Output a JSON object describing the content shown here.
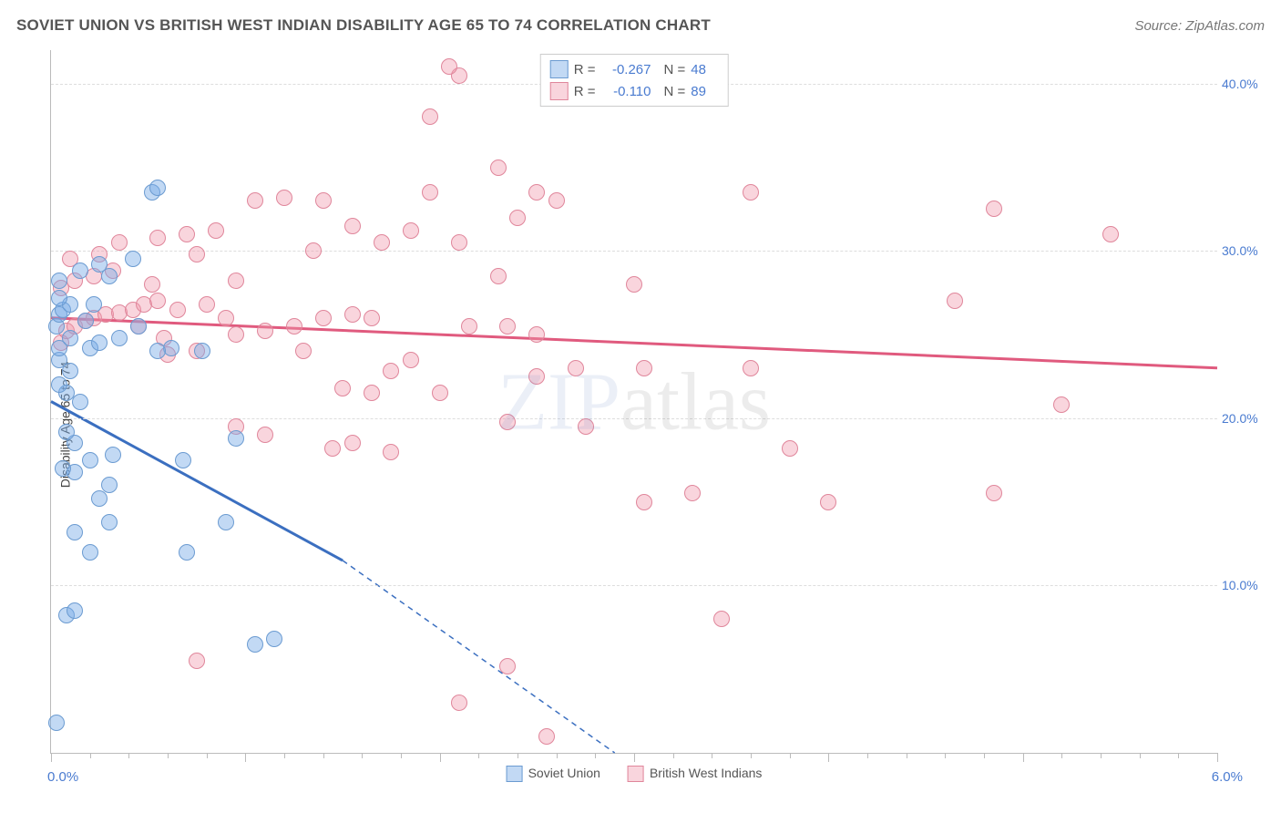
{
  "title": "SOVIET UNION VS BRITISH WEST INDIAN DISABILITY AGE 65 TO 74 CORRELATION CHART",
  "source": "Source: ZipAtlas.com",
  "ylabel": "Disability Age 65 to 74",
  "watermark_part1": "ZIP",
  "watermark_part2": "atlas",
  "chart": {
    "type": "scatter",
    "background_color": "#ffffff",
    "grid_color": "#dddddd",
    "axis_color": "#bbbbbb",
    "label_color": "#4a7bd0",
    "title_fontsize": 17,
    "label_fontsize": 14,
    "tick_fontsize": 14,
    "xlim": [
      0.0,
      6.0
    ],
    "ylim": [
      0.0,
      42.0
    ],
    "xlim_labels": [
      "0.0%",
      "6.0%"
    ],
    "yticks": [
      10.0,
      20.0,
      30.0,
      40.0
    ],
    "ytick_labels": [
      "10.0%",
      "20.0%",
      "30.0%",
      "40.0%"
    ],
    "xtick_minor_step": 0.2,
    "xtick_major_step": 1.0,
    "point_radius": 9,
    "series": [
      {
        "name": "Soviet Union",
        "fill": "rgba(120, 170, 230, 0.45)",
        "stroke": "#6b9bd1",
        "line_color": "#3b6fc0",
        "line_width": 3,
        "R": "-0.267",
        "N": "48",
        "trend": {
          "x1": 0.0,
          "y1": 21.0,
          "x2": 1.5,
          "y2": 11.5,
          "x2_ext": 2.9,
          "y2_ext": 0.0
        },
        "points": [
          [
            0.03,
            1.8
          ],
          [
            0.08,
            8.2
          ],
          [
            0.12,
            8.5
          ],
          [
            0.2,
            12.0
          ],
          [
            0.7,
            12.0
          ],
          [
            0.3,
            13.8
          ],
          [
            0.9,
            13.8
          ],
          [
            1.05,
            6.5
          ],
          [
            1.15,
            6.8
          ],
          [
            0.25,
            15.2
          ],
          [
            0.3,
            16.0
          ],
          [
            0.12,
            16.8
          ],
          [
            0.2,
            17.5
          ],
          [
            0.32,
            17.8
          ],
          [
            0.68,
            17.5
          ],
          [
            0.08,
            21.5
          ],
          [
            0.04,
            22.0
          ],
          [
            0.1,
            22.8
          ],
          [
            0.04,
            23.5
          ],
          [
            0.04,
            24.2
          ],
          [
            0.1,
            24.8
          ],
          [
            0.03,
            25.5
          ],
          [
            0.04,
            26.2
          ],
          [
            0.06,
            26.5
          ],
          [
            0.1,
            26.8
          ],
          [
            0.04,
            27.2
          ],
          [
            0.2,
            24.2
          ],
          [
            0.25,
            24.5
          ],
          [
            0.35,
            24.8
          ],
          [
            0.45,
            25.5
          ],
          [
            0.15,
            28.8
          ],
          [
            0.04,
            28.2
          ],
          [
            0.52,
            33.5
          ],
          [
            0.55,
            33.8
          ],
          [
            0.42,
            29.5
          ],
          [
            0.25,
            29.2
          ],
          [
            0.3,
            28.5
          ],
          [
            0.12,
            18.5
          ],
          [
            0.08,
            19.2
          ],
          [
            0.95,
            18.8
          ],
          [
            0.78,
            24.0
          ],
          [
            0.62,
            24.2
          ],
          [
            0.55,
            24.0
          ],
          [
            0.18,
            25.8
          ],
          [
            0.22,
            26.8
          ],
          [
            0.06,
            17.0
          ],
          [
            0.12,
            13.2
          ],
          [
            0.15,
            21.0
          ]
        ]
      },
      {
        "name": "British West Indians",
        "fill": "rgba(240, 150, 170, 0.40)",
        "stroke": "#e0869b",
        "line_color": "#e05a7e",
        "line_width": 3,
        "R": "-0.110",
        "N": "89",
        "trend": {
          "x1": 0.0,
          "y1": 26.0,
          "x2": 6.0,
          "y2": 23.0
        },
        "points": [
          [
            0.05,
            24.5
          ],
          [
            0.08,
            25.2
          ],
          [
            0.12,
            25.5
          ],
          [
            0.18,
            25.8
          ],
          [
            0.22,
            26.0
          ],
          [
            0.28,
            26.2
          ],
          [
            0.35,
            26.3
          ],
          [
            0.42,
            26.5
          ],
          [
            0.48,
            26.8
          ],
          [
            0.55,
            27.0
          ],
          [
            0.05,
            27.8
          ],
          [
            0.12,
            28.2
          ],
          [
            0.22,
            28.5
          ],
          [
            0.32,
            28.8
          ],
          [
            0.1,
            29.5
          ],
          [
            0.25,
            29.8
          ],
          [
            0.75,
            29.8
          ],
          [
            0.52,
            28.0
          ],
          [
            0.95,
            28.2
          ],
          [
            0.35,
            30.5
          ],
          [
            0.55,
            30.8
          ],
          [
            0.7,
            31.0
          ],
          [
            0.85,
            31.2
          ],
          [
            0.45,
            25.5
          ],
          [
            0.6,
            23.8
          ],
          [
            0.58,
            24.8
          ],
          [
            0.65,
            26.5
          ],
          [
            0.75,
            24.0
          ],
          [
            0.8,
            26.8
          ],
          [
            0.9,
            26.0
          ],
          [
            0.95,
            25.0
          ],
          [
            1.1,
            25.2
          ],
          [
            1.25,
            25.5
          ],
          [
            1.3,
            24.0
          ],
          [
            1.4,
            26.0
          ],
          [
            1.55,
            26.2
          ],
          [
            1.65,
            26.0
          ],
          [
            1.5,
            21.8
          ],
          [
            1.65,
            21.5
          ],
          [
            1.75,
            22.8
          ],
          [
            1.85,
            23.5
          ],
          [
            1.35,
            30.0
          ],
          [
            1.55,
            31.5
          ],
          [
            1.7,
            30.5
          ],
          [
            1.85,
            31.2
          ],
          [
            1.05,
            33.0
          ],
          [
            1.2,
            33.2
          ],
          [
            1.4,
            33.0
          ],
          [
            1.45,
            18.2
          ],
          [
            1.55,
            18.5
          ],
          [
            1.75,
            18.0
          ],
          [
            1.95,
            38.0
          ],
          [
            2.1,
            40.5
          ],
          [
            2.3,
            35.0
          ],
          [
            2.1,
            30.5
          ],
          [
            2.15,
            25.5
          ],
          [
            2.35,
            25.5
          ],
          [
            2.3,
            28.5
          ],
          [
            2.5,
            33.5
          ],
          [
            2.6,
            33.0
          ],
          [
            2.5,
            25.0
          ],
          [
            2.5,
            22.5
          ],
          [
            2.7,
            23.0
          ],
          [
            2.75,
            19.5
          ],
          [
            2.35,
            19.8
          ],
          [
            2.1,
            3.0
          ],
          [
            2.35,
            5.2
          ],
          [
            2.55,
            1.0
          ],
          [
            3.0,
            28.0
          ],
          [
            3.05,
            23.0
          ],
          [
            3.05,
            15.0
          ],
          [
            3.3,
            15.5
          ],
          [
            3.6,
            33.5
          ],
          [
            3.6,
            23.0
          ],
          [
            3.8,
            18.2
          ],
          [
            4.0,
            15.0
          ],
          [
            3.45,
            8.0
          ],
          [
            4.65,
            27.0
          ],
          [
            4.85,
            15.5
          ],
          [
            4.85,
            32.5
          ],
          [
            5.2,
            20.8
          ],
          [
            5.45,
            31.0
          ],
          [
            0.95,
            19.5
          ],
          [
            1.1,
            19.0
          ],
          [
            0.75,
            5.5
          ],
          [
            2.0,
            21.5
          ],
          [
            2.05,
            41.0
          ],
          [
            2.4,
            32.0
          ],
          [
            1.95,
            33.5
          ]
        ]
      }
    ]
  },
  "bottom_legend": [
    {
      "label": "Soviet Union",
      "fill": "rgba(120, 170, 230, 0.45)",
      "stroke": "#6b9bd1"
    },
    {
      "label": "British West Indians",
      "fill": "rgba(240, 150, 170, 0.40)",
      "stroke": "#e0869b"
    }
  ]
}
